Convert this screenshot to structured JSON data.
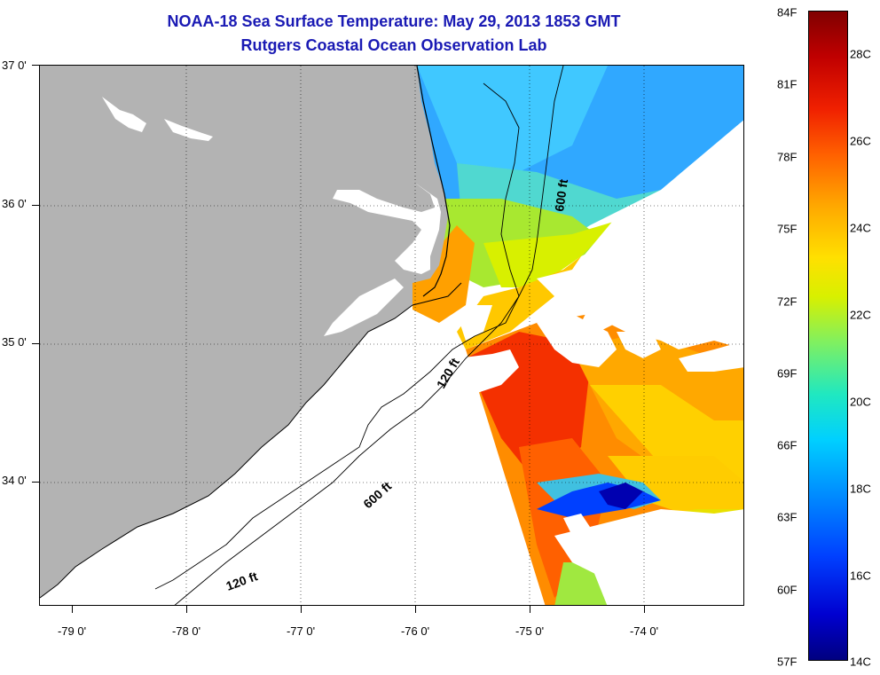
{
  "header": {
    "title": "NOAA-18 Sea Surface Temperature:  May 29, 2013 1853 GMT",
    "subtitle": "Rutgers Coastal Ocean Observation Lab"
  },
  "axes": {
    "latitude_labels": [
      "37 0'",
      "36 0'",
      "35 0'",
      "34 0'"
    ],
    "longitude_labels": [
      "-79 0'",
      "-78 0'",
      "-77 0'",
      "-76 0'",
      "-75 0'",
      "-74 0'"
    ],
    "lat_range": [
      33.1,
      37.0
    ],
    "lon_range": [
      -79.3,
      -73.1
    ]
  },
  "contours": {
    "labels": [
      "600 ft",
      "120 ft",
      "600 ft",
      "120 ft"
    ]
  },
  "colorbar": {
    "fahrenheit_labels": [
      "84F",
      "81F",
      "78F",
      "75F",
      "72F",
      "69F",
      "66F",
      "63F",
      "60F",
      "57F"
    ],
    "celsius_labels": [
      "28C",
      "26C",
      "24C",
      "22C",
      "20C",
      "18C",
      "16C",
      "14C"
    ],
    "range_f": [
      57,
      84
    ],
    "range_c": [
      13.9,
      28.9
    ]
  },
  "colors": {
    "title": "#1a1ab4",
    "land": "#b3b3b3",
    "no_data": "#ffffff"
  }
}
